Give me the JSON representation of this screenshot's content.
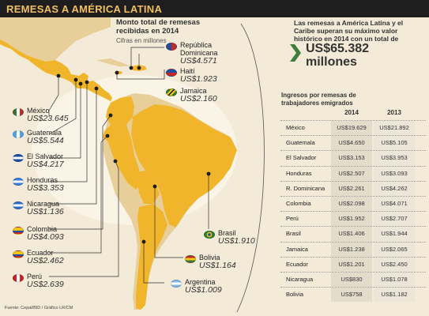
{
  "header": {
    "title": "REMESAS A AMÉRICA LATINA"
  },
  "subtitle": {
    "line1": "Monto total de remesas",
    "line2": "recibidas en 2014",
    "note": "Cifras en millones"
  },
  "intro": {
    "text": "Las remesas a América Latina y el Caribe superan su máximo valor histórico en 2014 con un total de"
  },
  "total": {
    "amount": "US$65.382",
    "unit": "millones"
  },
  "table": {
    "title_line1": "Ingresos por remesas de",
    "title_line2": "trabajadores emigrados",
    "col_2014": "2014",
    "col_2013": "2013",
    "rows": [
      {
        "country": "México",
        "v2014": "US$19.629",
        "v2013": "US$21.892"
      },
      {
        "country": "Guatemala",
        "v2014": "US$4.650",
        "v2013": "US$5.105"
      },
      {
        "country": "El Salvador",
        "v2014": "US$3.153",
        "v2013": "US$3.953"
      },
      {
        "country": "Honduras",
        "v2014": "US$2.507",
        "v2013": "US$3.093"
      },
      {
        "country": "R. Dominicana",
        "v2014": "US$2.261",
        "v2013": "US$4.262"
      },
      {
        "country": "Colombia",
        "v2014": "US$2.098",
        "v2013": "US$4.071"
      },
      {
        "country": "Perú",
        "v2014": "US$1.952",
        "v2013": "US$2.707"
      },
      {
        "country": "Brasil",
        "v2014": "US$1.406",
        "v2013": "US$1.944"
      },
      {
        "country": "Jamaica",
        "v2014": "US$1.238",
        "v2013": "US$2.065"
      },
      {
        "country": "Ecuador",
        "v2014": "US$1.201",
        "v2013": "US$2.450"
      },
      {
        "country": "Nicaragua",
        "v2014": "US$830",
        "v2013": "US$1.078"
      },
      {
        "country": "Bolivia",
        "v2014": "US$758",
        "v2013": "US$1.182"
      }
    ]
  },
  "map_labels": {
    "mexico": {
      "name": "México",
      "value": "US$23.645"
    },
    "guatemala": {
      "name": "Guatemala",
      "value": "US$5.544"
    },
    "el_salvador": {
      "name": "El Salvador",
      "value": "US$4.217"
    },
    "honduras": {
      "name": "Honduras",
      "value": "US$3.353"
    },
    "nicaragua": {
      "name": "Nicaragua",
      "value": "US$1.136"
    },
    "colombia": {
      "name": "Colombia",
      "value": "US$4.093"
    },
    "ecuador": {
      "name": "Ecuador",
      "value": "US$2.462"
    },
    "peru": {
      "name": "Perú",
      "value": "US$2.639"
    },
    "rep_dominicana": {
      "name1": "República",
      "name2": "Dominicana",
      "value": "US$4.571"
    },
    "haiti": {
      "name": "Haití",
      "value": "US$1.923"
    },
    "jamaica": {
      "name": "Jamaica",
      "value": "US$2.160"
    },
    "brasil": {
      "name": "Brasil",
      "value": "US$1.910"
    },
    "bolivia": {
      "name": "Bolivia",
      "value": "US$1.164"
    },
    "argentina": {
      "name": "Argentina",
      "value": "US$1.009"
    }
  },
  "source": "Fuente: Cepal/BID / Gráfico LR/CM",
  "colors": {
    "land_focus": "#f0b52a",
    "land_other": "#e8cf9a",
    "sea": "#f3ead7",
    "header_bg": "#1e1e1e",
    "header_text": "#f0c060",
    "arrow": "#3f7d3f"
  }
}
